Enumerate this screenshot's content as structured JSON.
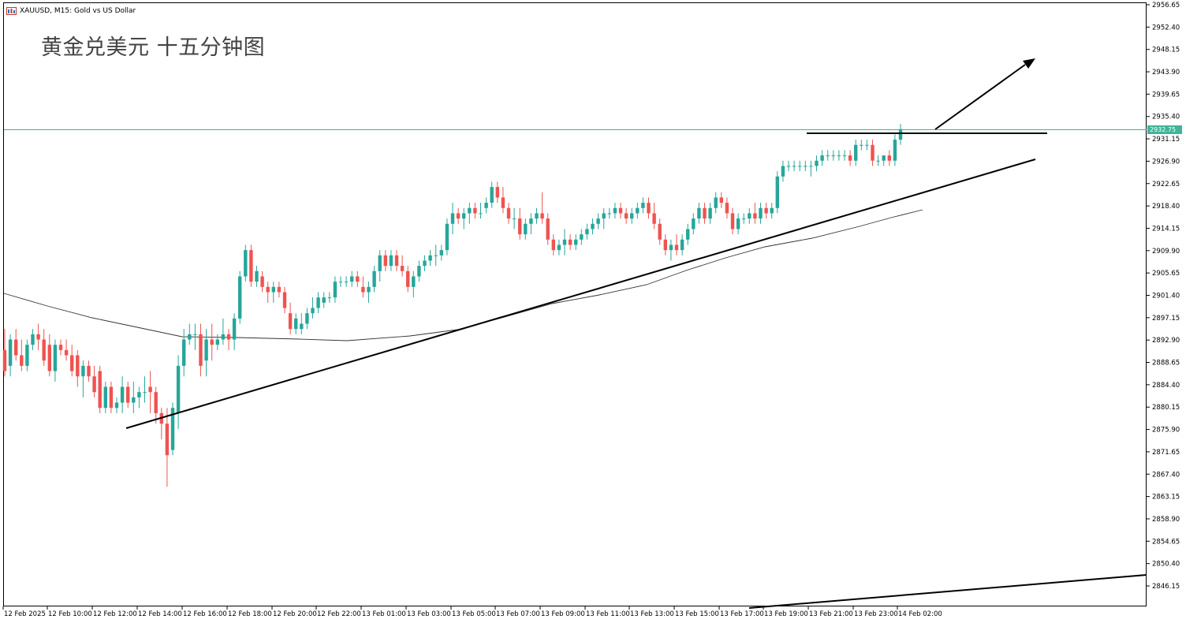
{
  "header": {
    "symbol_text": "XAUUSD, M15:  Gold vs US Dollar",
    "title": "黄金兑美元 十五分钟图"
  },
  "chart_data": {
    "type": "candlestick",
    "symbol": "XAUUSD",
    "timeframe": "M15",
    "current_price": "2932.75",
    "y_ticks": [
      "2956.65",
      "2952.40",
      "2948.15",
      "2943.90",
      "2939.65",
      "2935.40",
      "2931.15",
      "2926.90",
      "2922.65",
      "2918.40",
      "2914.15",
      "2909.90",
      "2905.65",
      "2901.40",
      "2897.15",
      "2892.90",
      "2888.65",
      "2884.40",
      "2880.15",
      "2875.90",
      "2871.65",
      "2867.40",
      "2863.15",
      "2858.90",
      "2854.65",
      "2850.40",
      "2846.15"
    ],
    "ylim": [
      2843.4,
      2957.7
    ],
    "x_ticks": [
      "12 Feb 2025",
      "12 Feb 10:00",
      "12 Feb 12:00",
      "12 Feb 14:00",
      "12 Feb 16:00",
      "12 Feb 18:00",
      "12 Feb 20:00",
      "12 Feb 22:00",
      "13 Feb 01:00",
      "13 Feb 03:00",
      "13 Feb 05:00",
      "13 Feb 07:00",
      "13 Feb 09:00",
      "13 Feb 11:00",
      "13 Feb 13:00",
      "13 Feb 15:00",
      "13 Feb 17:00",
      "13 Feb 19:00",
      "13 Feb 21:00",
      "13 Feb 23:00",
      "14 Feb 02:00"
    ],
    "bar_step": 7.1,
    "first_bar_x": 6,
    "candles": [
      [
        2891,
        2895,
        2886,
        2887
      ],
      [
        2888,
        2894,
        2886,
        2893
      ],
      [
        2893,
        2895,
        2889,
        2890
      ],
      [
        2890,
        2893,
        2887,
        2888
      ],
      [
        2888,
        2893,
        2887,
        2892
      ],
      [
        2892,
        2895,
        2891,
        2894
      ],
      [
        2894,
        2896,
        2891,
        2893
      ],
      [
        2893,
        2895,
        2888,
        2889
      ],
      [
        2892,
        2894,
        2886,
        2887
      ],
      [
        2887,
        2893,
        2885,
        2892
      ],
      [
        2892,
        2893,
        2890,
        2891
      ],
      [
        2891,
        2893,
        2889,
        2890
      ],
      [
        2890,
        2892,
        2886,
        2887
      ],
      [
        2890,
        2891,
        2884,
        2886
      ],
      [
        2886,
        2889,
        2882,
        2888
      ],
      [
        2888,
        2889,
        2885,
        2886
      ],
      [
        2886,
        2888,
        2882,
        2883
      ],
      [
        2887,
        2888,
        2879,
        2880
      ],
      [
        2880,
        2885,
        2879,
        2884
      ],
      [
        2884,
        2885,
        2879,
        2880
      ],
      [
        2880,
        2882,
        2879,
        2881
      ],
      [
        2881,
        2886,
        2879,
        2884
      ],
      [
        2884,
        2885,
        2880,
        2881
      ],
      [
        2881,
        2885,
        2879,
        2882
      ],
      [
        2882,
        2884,
        2880,
        2883
      ],
      [
        2883,
        2886,
        2881,
        2883
      ],
      [
        2884,
        2887,
        2879,
        2883
      ],
      [
        2883,
        2884,
        2877,
        2879
      ],
      [
        2879,
        2880,
        2874,
        2877
      ],
      [
        2877,
        2880,
        2865,
        2871
      ],
      [
        2872,
        2881,
        2871,
        2880
      ],
      [
        2879,
        2890,
        2876,
        2888
      ],
      [
        2888,
        2895,
        2886,
        2893
      ],
      [
        2893,
        2896,
        2892,
        2894
      ],
      [
        2894,
        2896,
        2891,
        2894
      ],
      [
        2894,
        2896,
        2886,
        2888
      ],
      [
        2889,
        2895,
        2886,
        2893
      ],
      [
        2893,
        2896,
        2889,
        2892
      ],
      [
        2892,
        2894,
        2891,
        2893
      ],
      [
        2893,
        2897,
        2892,
        2894
      ],
      [
        2894,
        2895,
        2891,
        2893
      ],
      [
        2893,
        2898,
        2891,
        2897
      ],
      [
        2897,
        2906,
        2896,
        2905
      ],
      [
        2905,
        2911,
        2904,
        2910
      ],
      [
        2910,
        2911,
        2903,
        2904
      ],
      [
        2904,
        2907,
        2903,
        2906
      ],
      [
        2905,
        2906,
        2902,
        2903
      ],
      [
        2903,
        2904,
        2900,
        2902
      ],
      [
        2902,
        2904,
        2900,
        2903
      ],
      [
        2903,
        2904,
        2901,
        2902
      ],
      [
        2902,
        2903,
        2898,
        2899
      ],
      [
        2898,
        2900,
        2894,
        2895
      ],
      [
        2895,
        2898,
        2894,
        2897
      ],
      [
        2895,
        2898,
        2894,
        2896
      ],
      [
        2896,
        2899,
        2895,
        2898
      ],
      [
        2898,
        2901,
        2897,
        2899
      ],
      [
        2899,
        2902,
        2898,
        2901
      ],
      [
        2900,
        2902,
        2899,
        2901
      ],
      [
        2901,
        2902,
        2900,
        2901
      ],
      [
        2901,
        2905,
        2900,
        2904
      ],
      [
        2904,
        2905,
        2903,
        2904
      ],
      [
        2904,
        2905,
        2903,
        2904
      ],
      [
        2904,
        2906,
        2903,
        2905
      ],
      [
        2905,
        2906,
        2903,
        2904
      ],
      [
        2903,
        2905,
        2901,
        2902
      ],
      [
        2902,
        2904,
        2900,
        2903
      ],
      [
        2903,
        2907,
        2902,
        2906
      ],
      [
        2906,
        2910,
        2904,
        2909
      ],
      [
        2909,
        2910,
        2906,
        2907
      ],
      [
        2907,
        2910,
        2906,
        2909
      ],
      [
        2909,
        2910,
        2906,
        2907
      ],
      [
        2907,
        2909,
        2905,
        2906
      ],
      [
        2906,
        2907,
        2902,
        2903
      ],
      [
        2903,
        2906,
        2901,
        2905
      ],
      [
        2905,
        2908,
        2904,
        2907
      ],
      [
        2907,
        2909,
        2906,
        2908
      ],
      [
        2908,
        2910,
        2907,
        2909
      ],
      [
        2909,
        2911,
        2907,
        2909
      ],
      [
        2909,
        2911,
        2908,
        2910
      ],
      [
        2910,
        2916,
        2909,
        2915
      ],
      [
        2915,
        2919,
        2913,
        2917
      ],
      [
        2917,
        2918,
        2915,
        2916
      ],
      [
        2916,
        2918,
        2914,
        2917
      ],
      [
        2917,
        2919,
        2915,
        2918
      ],
      [
        2918,
        2919,
        2916,
        2917
      ],
      [
        2917,
        2919,
        2916,
        2917
      ],
      [
        2918,
        2920,
        2917,
        2919
      ],
      [
        2919,
        2923,
        2918,
        2922
      ],
      [
        2922,
        2923,
        2919,
        2920
      ],
      [
        2920,
        2922,
        2917,
        2918
      ],
      [
        2918,
        2919,
        2915,
        2916
      ],
      [
        2916,
        2918,
        2914,
        2916
      ],
      [
        2916,
        2918,
        2912,
        2913
      ],
      [
        2913,
        2916,
        2912,
        2915
      ],
      [
        2915,
        2917,
        2913,
        2916
      ],
      [
        2916,
        2918,
        2915,
        2917
      ],
      [
        2917,
        2921,
        2915,
        2916
      ],
      [
        2916,
        2917,
        2911,
        2912
      ],
      [
        2912,
        2913,
        2909,
        2910
      ],
      [
        2910,
        2912,
        2909,
        2911
      ],
      [
        2911,
        2914,
        2909,
        2912
      ],
      [
        2912,
        2913,
        2910,
        2911
      ],
      [
        2911,
        2913,
        2910,
        2912
      ],
      [
        2912,
        2914,
        2911,
        2913
      ],
      [
        2913,
        2915,
        2912,
        2914
      ],
      [
        2914,
        2916,
        2913,
        2915
      ],
      [
        2915,
        2917,
        2914,
        2916
      ],
      [
        2916,
        2918,
        2914,
        2917
      ],
      [
        2917,
        2918,
        2916,
        2917
      ],
      [
        2917,
        2919,
        2916,
        2918
      ],
      [
        2918,
        2919,
        2916,
        2917
      ],
      [
        2917,
        2918,
        2915,
        2916
      ],
      [
        2916,
        2918,
        2915,
        2917
      ],
      [
        2917,
        2919,
        2916,
        2918
      ],
      [
        2918,
        2920,
        2917,
        2919
      ],
      [
        2919,
        2920,
        2916,
        2917
      ],
      [
        2917,
        2919,
        2914,
        2915
      ],
      [
        2915,
        2916,
        2911,
        2912
      ],
      [
        2912,
        2913,
        2909,
        2910
      ],
      [
        2910,
        2912,
        2908,
        2911
      ],
      [
        2911,
        2913,
        2909,
        2910
      ],
      [
        2910,
        2913,
        2909,
        2912
      ],
      [
        2912,
        2915,
        2911,
        2914
      ],
      [
        2914,
        2917,
        2913,
        2916
      ],
      [
        2916,
        2919,
        2915,
        2918
      ],
      [
        2918,
        2919,
        2915,
        2916
      ],
      [
        2916,
        2919,
        2915,
        2918
      ],
      [
        2918,
        2921,
        2917,
        2920
      ],
      [
        2920,
        2921,
        2918,
        2919
      ],
      [
        2919,
        2920,
        2916,
        2917
      ],
      [
        2917,
        2918,
        2913,
        2914
      ],
      [
        2914,
        2917,
        2913,
        2916
      ],
      [
        2916,
        2917,
        2915,
        2916
      ],
      [
        2916,
        2918,
        2915,
        2917
      ],
      [
        2917,
        2919,
        2915,
        2916
      ],
      [
        2916,
        2919,
        2915,
        2918
      ],
      [
        2918,
        2919,
        2916,
        2917
      ],
      [
        2917,
        2919,
        2916,
        2918
      ],
      [
        2918,
        2925,
        2917,
        2924
      ],
      [
        2924,
        2927,
        2923,
        2926
      ],
      [
        2926,
        2927,
        2925,
        2926
      ],
      [
        2926,
        2927,
        2925,
        2926
      ],
      [
        2926,
        2927,
        2925,
        2926
      ],
      [
        2926,
        2927,
        2925,
        2926
      ],
      [
        2926,
        2927,
        2924,
        2926
      ],
      [
        2926,
        2928,
        2925,
        2927
      ],
      [
        2927,
        2929,
        2926,
        2928
      ],
      [
        2928,
        2929,
        2927,
        2928
      ],
      [
        2928,
        2929,
        2927,
        2928
      ],
      [
        2928,
        2929,
        2927,
        2928
      ],
      [
        2928,
        2929,
        2927,
        2928
      ],
      [
        2928,
        2929,
        2926,
        2927
      ],
      [
        2927,
        2931,
        2926,
        2930
      ],
      [
        2930,
        2931,
        2929,
        2930
      ],
      [
        2930,
        2931,
        2929,
        2930
      ],
      [
        2930,
        2931,
        2926,
        2927
      ],
      [
        2927,
        2928,
        2926,
        2927
      ],
      [
        2927,
        2928,
        2926,
        2928
      ],
      [
        2928,
        2929,
        2926,
        2927
      ],
      [
        2927,
        2932,
        2926,
        2931
      ],
      [
        2931,
        2934,
        2930,
        2933
      ]
    ]
  }
}
